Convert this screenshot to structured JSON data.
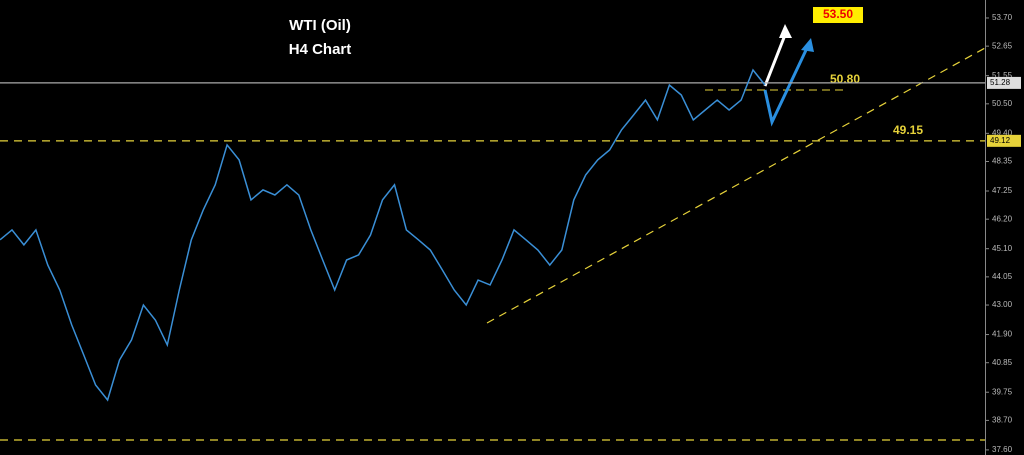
{
  "chart_data": {
    "type": "line",
    "title": "WTI (Oil)",
    "subtitle": "H4 Chart",
    "annotations": [
      "50.80",
      "49.15",
      "53.50"
    ],
    "series": [
      {
        "color": "#3a8fd6",
        "values": [
          45.43,
          45.8,
          45.24,
          45.8,
          44.49,
          43.56,
          42.26,
          41.14,
          40.02,
          39.46,
          40.95,
          41.7,
          43.0,
          42.44,
          41.51,
          43.56,
          45.43,
          46.54,
          47.48,
          48.97,
          48.41,
          46.92,
          47.29,
          47.1,
          47.48,
          47.1,
          45.8,
          44.68,
          43.56,
          44.68,
          44.87,
          45.61,
          46.92,
          47.48,
          45.8,
          45.43,
          45.05,
          44.31,
          43.56,
          43.0,
          43.93,
          43.75,
          44.68,
          45.8,
          45.43,
          45.05,
          44.49,
          45.05,
          46.92,
          47.85,
          48.41,
          48.78,
          49.53,
          50.08,
          50.64,
          49.9,
          51.2,
          50.83,
          49.9,
          50.27,
          50.64,
          50.27,
          50.64,
          51.76,
          51.2
        ]
      }
    ],
    "hlines": [
      {
        "value": 51.28,
        "color": "#aaaaaa",
        "style": "solid"
      },
      {
        "value": 49.12,
        "color": "#e6d23a",
        "style": "dashed"
      },
      {
        "value": 37.97,
        "color": "#e6d23a",
        "style": "dashed"
      }
    ],
    "ylim": [
      37.41,
      54.37
    ],
    "yticks": [
      {
        "value": 53.7,
        "label": "53.70"
      },
      {
        "value": 52.65,
        "label": "52.65"
      },
      {
        "value": 51.55,
        "label": "51.55"
      },
      {
        "value": 50.5,
        "label": "50.50"
      },
      {
        "value": 49.4,
        "label": "49.40"
      },
      {
        "value": 48.35,
        "label": "48.35"
      },
      {
        "value": 47.25,
        "label": "47.25"
      },
      {
        "value": 46.2,
        "label": "46.20"
      },
      {
        "value": 45.1,
        "label": "45.10"
      },
      {
        "value": 44.05,
        "label": "44.05"
      },
      {
        "value": 43.0,
        "label": "43.00"
      },
      {
        "value": 41.9,
        "label": "41.90"
      },
      {
        "value": 40.85,
        "label": "40.85"
      },
      {
        "value": 39.75,
        "label": "39.75"
      },
      {
        "value": 38.7,
        "label": "38.70"
      },
      {
        "value": 37.6,
        "label": "37.60"
      }
    ]
  }
}
